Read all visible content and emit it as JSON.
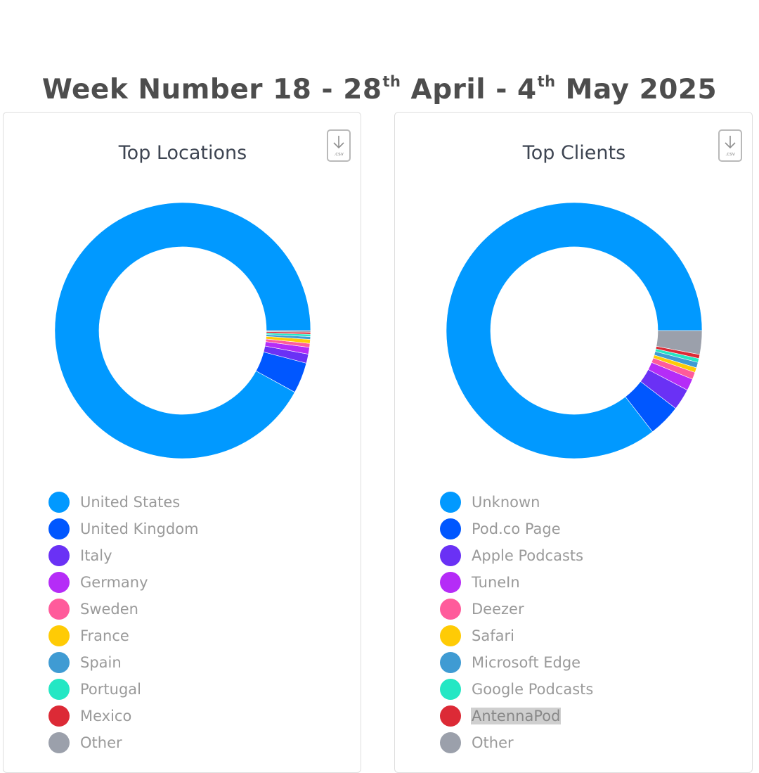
{
  "header": {
    "title_parts": {
      "a": "Week Number 18 - 28",
      "a_sup": "th",
      "b": " April - 4",
      "b_sup": "th",
      "c": " May 2025"
    }
  },
  "download": {
    "label": ".csv",
    "icon": "download-arrow-icon"
  },
  "chart_data": [
    {
      "type": "pie",
      "donut": true,
      "title": "Top Locations",
      "categories": [
        "United States",
        "United Kingdom",
        "Italy",
        "Germany",
        "Sweden",
        "France",
        "Spain",
        "Portugal",
        "Mexico",
        "Other"
      ],
      "values": [
        92.0,
        3.9,
        1.15,
        0.85,
        0.5,
        0.5,
        0.35,
        0.3,
        0.25,
        0.2
      ],
      "colors": [
        "#0199ff",
        "#0057ff",
        "#6a31f5",
        "#b52cf7",
        "#ff5b9b",
        "#ffcb05",
        "#3f9bd3",
        "#24e7c4",
        "#dc2a36",
        "#9ba0ab"
      ],
      "legend": "bottom"
    },
    {
      "type": "pie",
      "donut": true,
      "title": "Top Clients",
      "categories": [
        "Unknown",
        "Pod.co Page",
        "Apple Podcasts",
        "TuneIn",
        "Deezer",
        "Safari",
        "Microsoft Edge",
        "Google Podcasts",
        "AntennaPod",
        "Other"
      ],
      "values": [
        85.5,
        4.1,
        2.7,
        1.5,
        0.9,
        0.6,
        0.7,
        0.5,
        0.5,
        3.0
      ],
      "colors": [
        "#0199ff",
        "#0057ff",
        "#6a31f5",
        "#b52cf7",
        "#ff5b9b",
        "#ffcb05",
        "#3f9bd3",
        "#24e7c4",
        "#dc2a36",
        "#9ba0ab"
      ],
      "legend": "bottom",
      "highlighted": "AntennaPod"
    }
  ]
}
